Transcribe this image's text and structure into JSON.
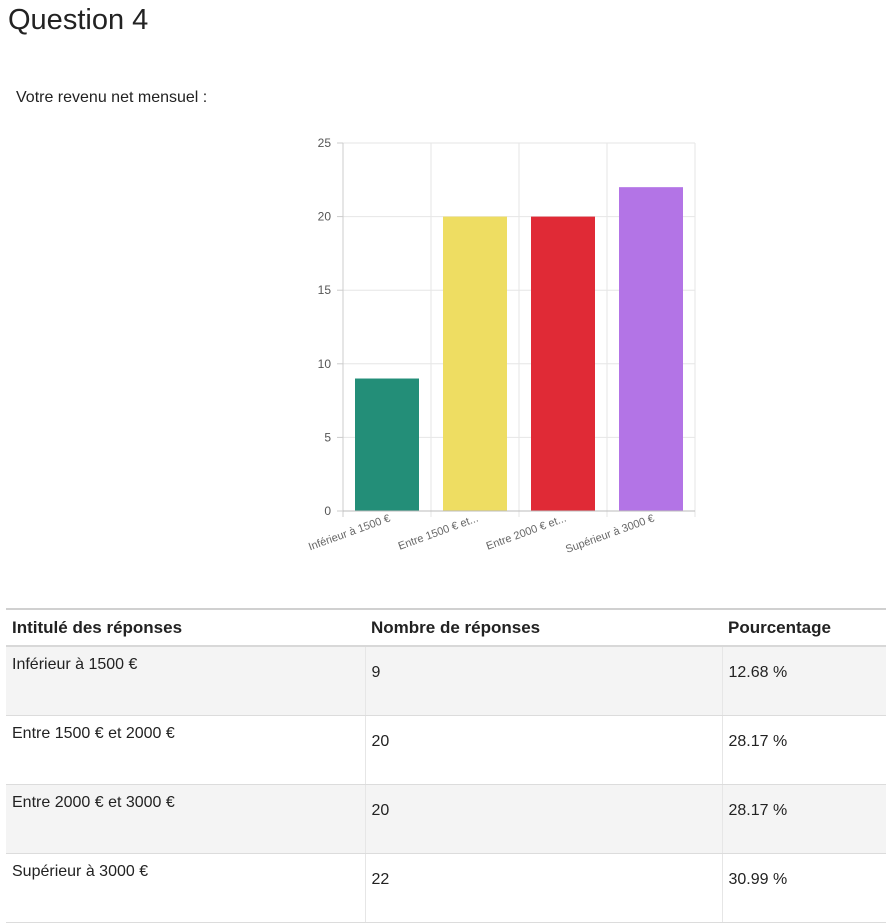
{
  "page": {
    "title": "Question 4",
    "question": "Votre revenu net mensuel :"
  },
  "chart_data": {
    "type": "bar",
    "categories": [
      "Inférieur à 1500 €",
      "Entre 1500 € et...",
      "Entre 2000 € et...",
      "Supérieur à 3000 €"
    ],
    "values": [
      9,
      20,
      20,
      22
    ],
    "colors": [
      "#238e78",
      "#eedd62",
      "#e02a36",
      "#b374e6"
    ],
    "ylim": [
      0,
      25
    ],
    "yticks": [
      0,
      5,
      10,
      15,
      20,
      25
    ],
    "grid": true,
    "title": "",
    "xlabel": "",
    "ylabel": ""
  },
  "table": {
    "headers": [
      "Intitulé des réponses",
      "Nombre de réponses",
      "Pourcentage"
    ],
    "rows": [
      {
        "label": "Inférieur à 1500 €",
        "count": "9",
        "percent": "12.68 %"
      },
      {
        "label": "Entre 1500 € et 2000 €",
        "count": "20",
        "percent": "28.17 %"
      },
      {
        "label": "Entre 2000 € et 3000 €",
        "count": "20",
        "percent": "28.17 %"
      },
      {
        "label": "Supérieur à 3000 €",
        "count": "22",
        "percent": "30.99 %"
      }
    ]
  }
}
